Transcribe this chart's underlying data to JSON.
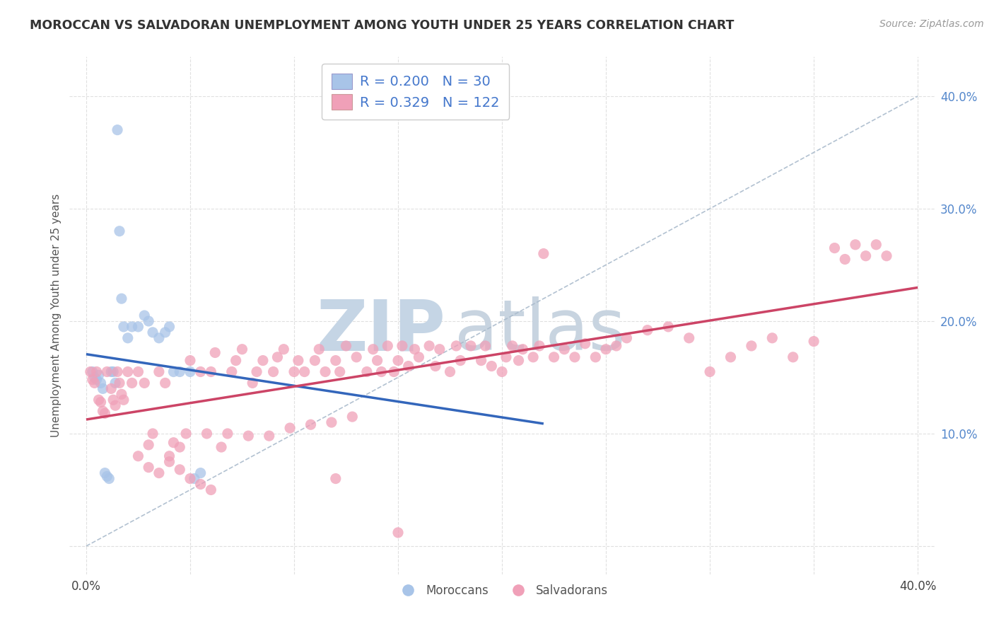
{
  "title": "MOROCCAN VS SALVADORAN UNEMPLOYMENT AMONG YOUTH UNDER 25 YEARS CORRELATION CHART",
  "source": "Source: ZipAtlas.com",
  "ylabel": "Unemployment Among Youth under 25 years",
  "xlim": [
    0.0,
    0.4
  ],
  "ylim": [
    -0.02,
    0.42
  ],
  "moroccan_color": "#a8c4e8",
  "salvadoran_color": "#f0a0b8",
  "moroccan_line_color": "#3366bb",
  "salvadoran_line_color": "#cc4466",
  "dashed_line_color": "#aabbcc",
  "watermark_zip_color": "#c8d8ea",
  "watermark_atlas_color": "#c0cedd",
  "legend_R1": "0.200",
  "legend_N1": "30",
  "legend_R2": "0.329",
  "legend_N2": "122",
  "moroccan_x": [
    0.003,
    0.004,
    0.005,
    0.006,
    0.007,
    0.008,
    0.009,
    0.01,
    0.011,
    0.012,
    0.013,
    0.014,
    0.015,
    0.016,
    0.017,
    0.018,
    0.02,
    0.022,
    0.025,
    0.028,
    0.03,
    0.032,
    0.035,
    0.038,
    0.04,
    0.042,
    0.045,
    0.05,
    0.052,
    0.055
  ],
  "moroccan_y": [
    0.155,
    0.15,
    0.148,
    0.152,
    0.145,
    0.14,
    0.065,
    0.062,
    0.06,
    0.155,
    0.155,
    0.145,
    0.37,
    0.28,
    0.22,
    0.195,
    0.185,
    0.195,
    0.195,
    0.205,
    0.2,
    0.19,
    0.185,
    0.19,
    0.195,
    0.155,
    0.155,
    0.155,
    0.06,
    0.065
  ],
  "salvadoran_x": [
    0.002,
    0.003,
    0.004,
    0.005,
    0.006,
    0.007,
    0.008,
    0.009,
    0.01,
    0.012,
    0.013,
    0.014,
    0.015,
    0.016,
    0.017,
    0.018,
    0.02,
    0.022,
    0.025,
    0.028,
    0.03,
    0.032,
    0.035,
    0.038,
    0.04,
    0.042,
    0.045,
    0.048,
    0.05,
    0.055,
    0.058,
    0.06,
    0.062,
    0.065,
    0.068,
    0.07,
    0.072,
    0.075,
    0.078,
    0.08,
    0.082,
    0.085,
    0.088,
    0.09,
    0.092,
    0.095,
    0.098,
    0.1,
    0.102,
    0.105,
    0.108,
    0.11,
    0.112,
    0.115,
    0.118,
    0.12,
    0.122,
    0.125,
    0.128,
    0.13,
    0.135,
    0.138,
    0.14,
    0.142,
    0.145,
    0.148,
    0.15,
    0.152,
    0.155,
    0.158,
    0.16,
    0.165,
    0.168,
    0.17,
    0.175,
    0.178,
    0.18,
    0.185,
    0.19,
    0.192,
    0.195,
    0.2,
    0.202,
    0.205,
    0.208,
    0.21,
    0.215,
    0.218,
    0.22,
    0.225,
    0.23,
    0.235,
    0.24,
    0.245,
    0.25,
    0.255,
    0.26,
    0.27,
    0.28,
    0.29,
    0.3,
    0.31,
    0.32,
    0.33,
    0.34,
    0.35,
    0.36,
    0.365,
    0.37,
    0.375,
    0.38,
    0.385,
    0.025,
    0.03,
    0.035,
    0.04,
    0.045,
    0.05,
    0.055,
    0.06,
    0.12,
    0.15
  ],
  "salvadoran_y": [
    0.155,
    0.148,
    0.145,
    0.155,
    0.13,
    0.128,
    0.12,
    0.118,
    0.155,
    0.14,
    0.13,
    0.125,
    0.155,
    0.145,
    0.135,
    0.13,
    0.155,
    0.145,
    0.155,
    0.145,
    0.09,
    0.1,
    0.155,
    0.145,
    0.08,
    0.092,
    0.088,
    0.1,
    0.165,
    0.155,
    0.1,
    0.155,
    0.172,
    0.088,
    0.1,
    0.155,
    0.165,
    0.175,
    0.098,
    0.145,
    0.155,
    0.165,
    0.098,
    0.155,
    0.168,
    0.175,
    0.105,
    0.155,
    0.165,
    0.155,
    0.108,
    0.165,
    0.175,
    0.155,
    0.11,
    0.165,
    0.155,
    0.178,
    0.115,
    0.168,
    0.155,
    0.175,
    0.165,
    0.155,
    0.178,
    0.155,
    0.165,
    0.178,
    0.16,
    0.175,
    0.168,
    0.178,
    0.16,
    0.175,
    0.155,
    0.178,
    0.165,
    0.178,
    0.165,
    0.178,
    0.16,
    0.155,
    0.168,
    0.178,
    0.165,
    0.175,
    0.168,
    0.178,
    0.26,
    0.168,
    0.175,
    0.168,
    0.18,
    0.168,
    0.175,
    0.178,
    0.185,
    0.192,
    0.195,
    0.185,
    0.155,
    0.168,
    0.178,
    0.185,
    0.168,
    0.182,
    0.265,
    0.255,
    0.268,
    0.258,
    0.268,
    0.258,
    0.08,
    0.07,
    0.065,
    0.075,
    0.068,
    0.06,
    0.055,
    0.05,
    0.06,
    0.012
  ]
}
